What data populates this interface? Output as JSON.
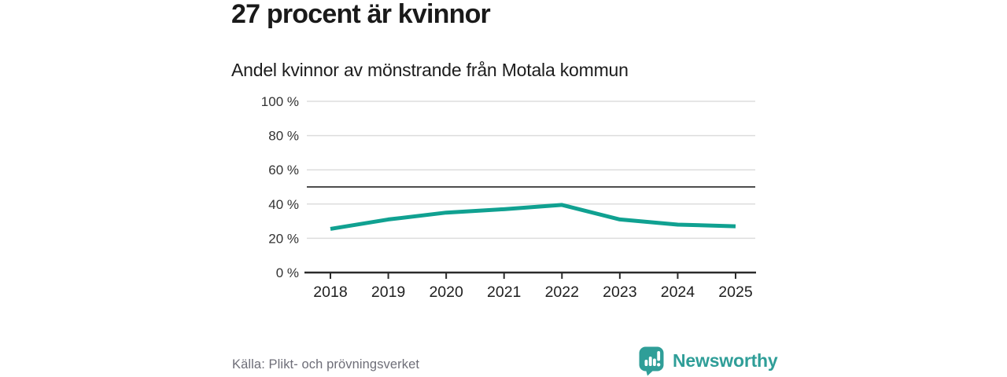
{
  "header": {
    "title": "27 procent är kvinnor",
    "subtitle": "Andel kvinnor av mönstrande från Motala kommun"
  },
  "chart_data": {
    "type": "line",
    "title": "27 procent är kvinnor",
    "subtitle": "Andel kvinnor av mönstrande från Motala kommun",
    "categories": [
      "2018",
      "2019",
      "2020",
      "2021",
      "2022",
      "2023",
      "2024",
      "2025"
    ],
    "series": [
      {
        "name": "Andel kvinnor av mönstrande",
        "values": [
          25.5,
          31,
          35,
          37,
          39.5,
          31,
          28,
          27
        ]
      }
    ],
    "ylim": [
      0,
      100
    ],
    "y_ticks": [
      0,
      20,
      40,
      60,
      80,
      100
    ],
    "y_tick_format": "{v} %",
    "grid": "horizontal",
    "reference_line": {
      "value": 50,
      "color": "#4d4d4d"
    },
    "line_color": "#10a191",
    "legend": "none"
  },
  "footer": {
    "source": "Källa: Plikt- och prövningsverket",
    "brand_name": "Newsworthy",
    "brand_color": "#2f9e98",
    "logo_icon": "newsworthy-speech-bubble-bar-chart-icon"
  },
  "colors": {
    "background": "#ffffff",
    "title_text": "#1a1a1a",
    "axis_text": "#333333",
    "x_label_text": "#1f1f1f",
    "gridline": "#dddddd",
    "axis_line": "#2b2b2b",
    "line": "#10a191",
    "reference_line": "#4d4d4d",
    "source_text": "#6e6e78"
  }
}
